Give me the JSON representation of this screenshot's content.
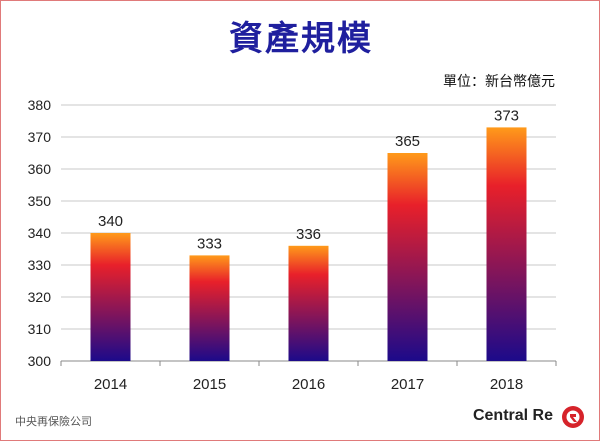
{
  "title": "資產規模",
  "unit_label": "單位：新台幣億元",
  "footer": {
    "company": "中央再保險公司",
    "brand": "Central Re"
  },
  "colors": {
    "title": "#1f1f9e",
    "bar_top": "#ff9a1a",
    "bar_mid": "#e8202a",
    "bar_bottom": "#1c0a8a",
    "logo": "#d6232a"
  },
  "chart_data": {
    "type": "bar",
    "categories": [
      "2014",
      "2015",
      "2016",
      "2017",
      "2018"
    ],
    "values": [
      340,
      333,
      336,
      365,
      373
    ],
    "data_labels": [
      "340",
      "333",
      "336",
      "365",
      "373"
    ],
    "title": "資產規模",
    "xlabel": "",
    "ylabel": "",
    "ylim": [
      300,
      380
    ],
    "yticks": [
      300,
      310,
      320,
      330,
      340,
      350,
      360,
      370,
      380
    ],
    "grid": true,
    "legend": "none"
  }
}
